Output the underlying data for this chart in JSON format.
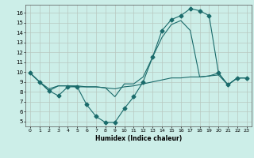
{
  "xlabel": "Humidex (Indice chaleur)",
  "bg_color": "#cceee8",
  "grid_color": "#b8c8c0",
  "line_color": "#1a6b6b",
  "xlim": [
    -0.5,
    23.5
  ],
  "ylim": [
    4.5,
    16.8
  ],
  "xticks": [
    0,
    1,
    2,
    3,
    4,
    5,
    6,
    7,
    8,
    9,
    10,
    11,
    12,
    13,
    14,
    15,
    16,
    17,
    18,
    19,
    20,
    21,
    22,
    23
  ],
  "yticks": [
    5,
    6,
    7,
    8,
    9,
    10,
    11,
    12,
    13,
    14,
    15,
    16
  ],
  "series": [
    {
      "x": [
        0,
        1,
        2,
        3,
        4,
        5,
        6,
        7,
        8,
        9,
        10,
        11,
        12,
        13,
        14,
        15,
        16,
        17,
        18,
        19,
        20,
        21,
        22,
        23
      ],
      "y": [
        9.9,
        9.0,
        8.1,
        7.6,
        8.5,
        8.5,
        6.7,
        5.5,
        4.9,
        4.9,
        6.3,
        7.5,
        9.0,
        11.5,
        14.2,
        15.3,
        15.7,
        16.4,
        16.2,
        15.7,
        9.9,
        8.7,
        9.4,
        9.4
      ],
      "marker": "D",
      "markersize": 2.5,
      "linewidth": 0.8
    },
    {
      "x": [
        0,
        1,
        2,
        3,
        4,
        5,
        6,
        7,
        8,
        9,
        10,
        11,
        12,
        13,
        14,
        15,
        16,
        17,
        18,
        19,
        20,
        21,
        22,
        23
      ],
      "y": [
        9.9,
        9.0,
        8.3,
        8.6,
        8.6,
        8.6,
        8.5,
        8.5,
        8.4,
        8.3,
        8.5,
        8.6,
        8.8,
        9.0,
        9.2,
        9.4,
        9.4,
        9.5,
        9.5,
        9.6,
        9.7,
        8.7,
        9.4,
        9.4
      ],
      "marker": null,
      "markersize": 0,
      "linewidth": 0.8
    },
    {
      "x": [
        0,
        1,
        2,
        3,
        4,
        5,
        6,
        7,
        8,
        9,
        10,
        11,
        12,
        13,
        14,
        15,
        16,
        17,
        18,
        19,
        20,
        21,
        22,
        23
      ],
      "y": [
        9.9,
        9.0,
        8.1,
        8.6,
        8.6,
        8.5,
        8.5,
        8.5,
        8.4,
        7.5,
        8.8,
        8.8,
        9.5,
        11.5,
        13.5,
        14.8,
        15.2,
        14.2,
        9.5,
        9.6,
        9.9,
        8.7,
        9.4,
        9.4
      ],
      "marker": null,
      "markersize": 0,
      "linewidth": 0.8
    }
  ]
}
